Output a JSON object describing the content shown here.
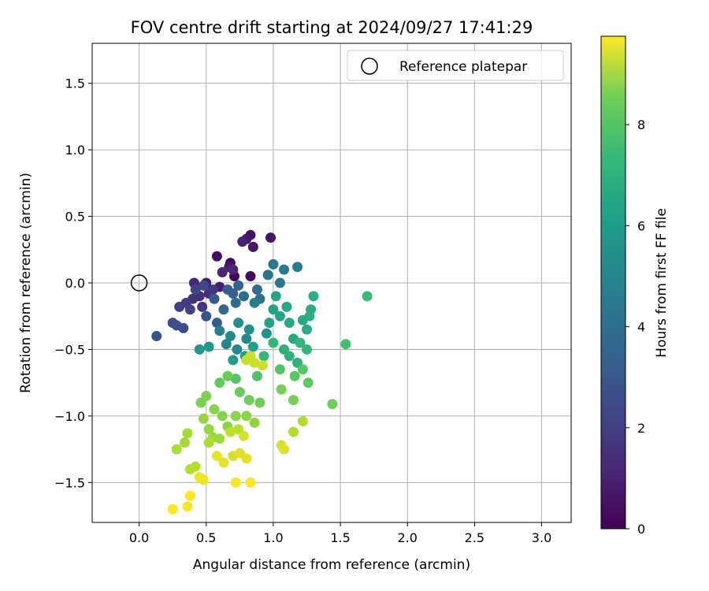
{
  "chart_data": {
    "type": "scatter",
    "title": "FOV centre drift starting at 2024/09/27 17:41:29",
    "xlabel": "Angular distance from reference (arcmin)",
    "ylabel": "Rotation from reference (arcmin)",
    "xlim": [
      -0.35,
      3.22
    ],
    "ylim": [
      -1.8,
      1.8
    ],
    "xticks": [
      "0.0",
      "0.5",
      "1.0",
      "1.5",
      "2.0",
      "2.5",
      "3.0"
    ],
    "xtick_values": [
      0,
      0.5,
      1.0,
      1.5,
      2.0,
      2.5,
      3.0
    ],
    "yticks": [
      "1.5",
      "1.0",
      "0.5",
      "0.0",
      "−0.5",
      "−1.0",
      "−1.5"
    ],
    "ytick_values": [
      1.5,
      1.0,
      0.5,
      0.0,
      -0.5,
      -1.0,
      -1.5
    ],
    "grid": true,
    "legend": {
      "position": "top-right",
      "entries": [
        "Reference platepar"
      ]
    },
    "reference_point": {
      "x": 0,
      "y": 0
    },
    "colorbar": {
      "label": "Hours from first FF file",
      "colormap": "viridis",
      "range": [
        0,
        9.75
      ],
      "ticks": [
        "0",
        "2",
        "4",
        "6",
        "8"
      ],
      "tick_values": [
        0,
        2,
        4,
        6,
        8
      ]
    },
    "points": [
      [
        0.71,
        0.05,
        0.1
      ],
      [
        0.83,
        0.05,
        0.2
      ],
      [
        0.68,
        0.15,
        0.3
      ],
      [
        0.58,
        0.2,
        0.4
      ],
      [
        0.83,
        0.36,
        0.5
      ],
      [
        0.98,
        0.34,
        0.5
      ],
      [
        0.8,
        0.33,
        0.6
      ],
      [
        0.85,
        0.27,
        0.6
      ],
      [
        0.67,
        0.12,
        0.7
      ],
      [
        0.6,
        -0.03,
        0.8
      ],
      [
        0.5,
        0.0,
        0.9
      ],
      [
        0.77,
        0.31,
        0.9
      ],
      [
        0.7,
        0.1,
        1.0
      ],
      [
        0.62,
        0.08,
        1.0
      ],
      [
        0.41,
        0.0,
        1.1
      ],
      [
        0.52,
        -0.08,
        1.2
      ],
      [
        0.45,
        -0.1,
        1.3
      ],
      [
        0.4,
        -0.12,
        1.4
      ],
      [
        0.55,
        -0.05,
        1.5
      ],
      [
        0.47,
        -0.18,
        1.6
      ],
      [
        0.35,
        -0.15,
        1.7
      ],
      [
        0.3,
        -0.18,
        1.8
      ],
      [
        0.38,
        -0.2,
        1.9
      ],
      [
        0.42,
        -0.05,
        2.0
      ],
      [
        0.48,
        -0.02,
        2.1
      ],
      [
        0.25,
        -0.3,
        2.2
      ],
      [
        0.33,
        -0.34,
        2.3
      ],
      [
        0.28,
        -0.32,
        2.4
      ],
      [
        0.13,
        -0.4,
        2.5
      ],
      [
        0.5,
        -0.25,
        2.6
      ],
      [
        0.56,
        -0.12,
        2.7
      ],
      [
        0.58,
        -0.3,
        2.8
      ],
      [
        0.66,
        -0.05,
        2.9
      ],
      [
        0.7,
        -0.08,
        3.0
      ],
      [
        0.74,
        -0.02,
        3.1
      ],
      [
        0.63,
        -0.2,
        3.2
      ],
      [
        0.72,
        -0.15,
        3.3
      ],
      [
        0.78,
        -0.1,
        3.4
      ],
      [
        0.88,
        -0.05,
        3.5
      ],
      [
        0.9,
        -0.12,
        3.6
      ],
      [
        0.96,
        0.06,
        3.7
      ],
      [
        1.0,
        0.14,
        3.8
      ],
      [
        1.05,
        0.0,
        3.9
      ],
      [
        1.08,
        0.1,
        4.0
      ],
      [
        1.18,
        0.12,
        4.1
      ],
      [
        0.86,
        -0.15,
        4.2
      ],
      [
        0.6,
        -0.36,
        4.3
      ],
      [
        0.65,
        -0.46,
        4.4
      ],
      [
        0.73,
        -0.5,
        4.5
      ],
      [
        0.8,
        -0.42,
        4.6
      ],
      [
        0.68,
        -0.4,
        4.7
      ],
      [
        0.74,
        -0.3,
        4.8
      ],
      [
        0.82,
        -0.35,
        4.9
      ],
      [
        0.95,
        -0.38,
        5.0
      ],
      [
        0.45,
        -0.5,
        5.1
      ],
      [
        0.52,
        -0.48,
        5.2
      ],
      [
        0.7,
        -0.58,
        5.3
      ],
      [
        0.79,
        -0.55,
        5.4
      ],
      [
        0.85,
        -0.48,
        5.5
      ],
      [
        0.97,
        -0.3,
        5.6
      ],
      [
        1.0,
        -0.2,
        5.6
      ],
      [
        1.02,
        -0.1,
        5.7
      ],
      [
        1.05,
        -0.25,
        5.7
      ],
      [
        1.1,
        -0.18,
        5.8
      ],
      [
        1.12,
        -0.3,
        5.8
      ],
      [
        1.15,
        -0.42,
        5.9
      ],
      [
        1.22,
        -0.28,
        5.9
      ],
      [
        1.25,
        -0.35,
        6.0
      ],
      [
        1.28,
        -0.2,
        6.0
      ],
      [
        1.3,
        -0.1,
        6.1
      ],
      [
        1.27,
        -0.25,
        6.1
      ],
      [
        1.08,
        -0.5,
        6.2
      ],
      [
        1.12,
        -0.55,
        6.3
      ],
      [
        1.18,
        -0.6,
        6.3
      ],
      [
        1.2,
        -0.45,
        6.4
      ],
      [
        1.25,
        -0.5,
        6.4
      ],
      [
        1.0,
        -0.45,
        6.5
      ],
      [
        0.93,
        -0.55,
        6.5
      ],
      [
        1.7,
        -0.1,
        6.6
      ],
      [
        1.54,
        -0.46,
        6.8
      ],
      [
        0.88,
        -0.7,
        7.0
      ],
      [
        0.72,
        -0.72,
        7.1
      ],
      [
        1.05,
        -0.65,
        7.1
      ],
      [
        1.16,
        -0.7,
        7.2
      ],
      [
        1.22,
        -0.65,
        7.2
      ],
      [
        1.26,
        -0.75,
        7.3
      ],
      [
        0.6,
        -0.75,
        7.4
      ],
      [
        0.66,
        -0.7,
        7.5
      ],
      [
        0.75,
        -0.82,
        7.5
      ],
      [
        0.82,
        -0.88,
        7.6
      ],
      [
        0.9,
        -0.9,
        7.6
      ],
      [
        1.44,
        -0.91,
        7.6
      ],
      [
        1.15,
        -0.88,
        7.7
      ],
      [
        1.06,
        -0.8,
        7.7
      ],
      [
        0.5,
        -0.85,
        7.8
      ],
      [
        0.46,
        -0.9,
        7.8
      ],
      [
        0.56,
        -0.95,
        7.9
      ],
      [
        0.62,
        -1.0,
        7.9
      ],
      [
        0.66,
        -1.08,
        8.0
      ],
      [
        0.72,
        -1.0,
        8.0
      ],
      [
        0.8,
        -1.0,
        8.1
      ],
      [
        0.86,
        -1.05,
        8.1
      ],
      [
        0.48,
        -1.02,
        8.2
      ],
      [
        0.52,
        -1.1,
        8.2
      ],
      [
        0.55,
        -1.16,
        8.3
      ],
      [
        0.6,
        -1.17,
        8.3
      ],
      [
        0.36,
        -1.13,
        8.4
      ],
      [
        0.34,
        -1.2,
        8.4
      ],
      [
        0.28,
        -1.25,
        8.5
      ],
      [
        0.52,
        -1.2,
        8.5
      ],
      [
        1.15,
        -1.12,
        8.6
      ],
      [
        1.22,
        -1.04,
        8.6
      ],
      [
        0.38,
        -1.4,
        8.7
      ],
      [
        0.42,
        -1.38,
        8.7
      ],
      [
        0.68,
        -1.12,
        8.8
      ],
      [
        0.74,
        -1.1,
        8.8
      ],
      [
        0.8,
        -0.58,
        8.9
      ],
      [
        0.83,
        -0.55,
        8.9
      ],
      [
        0.86,
        -0.6,
        9.0
      ],
      [
        0.92,
        -0.62,
        9.0
      ],
      [
        0.7,
        -1.3,
        9.1
      ],
      [
        0.78,
        -1.15,
        9.1
      ],
      [
        1.06,
        -1.22,
        9.2
      ],
      [
        1.08,
        -1.25,
        9.2
      ],
      [
        0.75,
        -1.28,
        9.3
      ],
      [
        0.8,
        -1.32,
        9.3
      ],
      [
        0.58,
        -1.3,
        9.4
      ],
      [
        0.63,
        -1.35,
        9.4
      ],
      [
        0.45,
        -1.46,
        9.5
      ],
      [
        0.48,
        -1.48,
        9.5
      ],
      [
        0.36,
        -1.68,
        9.6
      ],
      [
        0.25,
        -1.7,
        9.7
      ],
      [
        0.38,
        -1.6,
        9.7
      ],
      [
        0.72,
        -1.5,
        9.7
      ],
      [
        0.83,
        -1.5,
        9.7
      ]
    ]
  }
}
